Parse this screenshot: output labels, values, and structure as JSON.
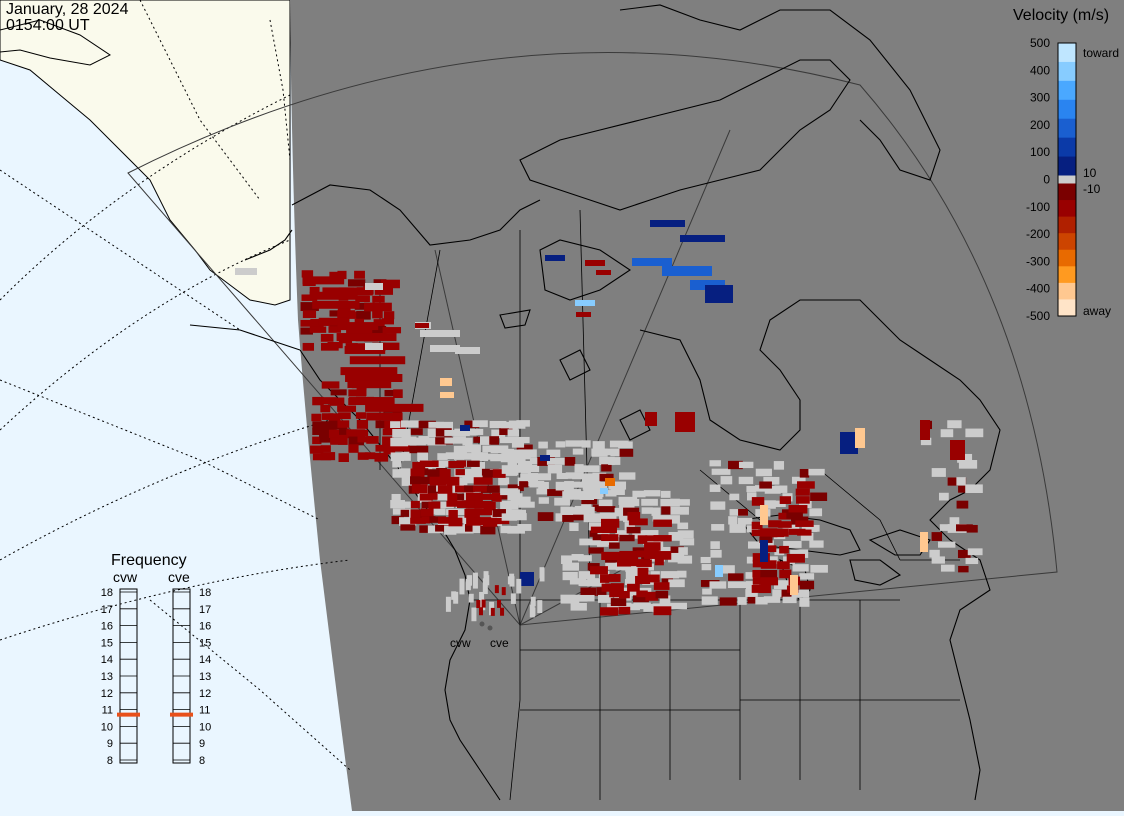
{
  "header": {
    "date": "January, 28 2024",
    "time": "0154:00 UT"
  },
  "velocity_scale": {
    "title": "Velocity (m/s)",
    "ticks": [
      "500",
      "400",
      "300",
      "200",
      "100",
      "0",
      "-100",
      "-200",
      "-300",
      "-400",
      "-500"
    ],
    "label_10": "10",
    "label_neg10": "-10",
    "toward_label": "toward",
    "away_label": "away",
    "colors_toward": [
      "#bfe6ff",
      "#87ccff",
      "#4aa8ff",
      "#2a84f0",
      "#1a5fd0",
      "#0b3aa8",
      "#061f80"
    ],
    "colors_away": [
      "#7a0000",
      "#990000",
      "#b02000",
      "#cc4400",
      "#e86a00",
      "#ff9a20",
      "#ffc890",
      "#ffe4c8"
    ],
    "zero_color": "#cccccc"
  },
  "frequency_panel": {
    "title": "Frequency",
    "radars": [
      {
        "name": "cvw",
        "freq_mhz": 10.7
      },
      {
        "name": "cve",
        "freq_mhz": 10.7
      }
    ],
    "ticks": [
      "18",
      "17",
      "16",
      "15",
      "14",
      "13",
      "12",
      "11",
      "10",
      "9",
      "8"
    ],
    "marker_color": "#e8501a"
  },
  "map": {
    "radar_labels": [
      "cvw",
      "cve"
    ],
    "colors": {
      "night": "#7f7f7f",
      "ocean_day": "#eaf6ff",
      "land_day": "#fafaec",
      "ground_scatter": "#cccccc"
    }
  }
}
